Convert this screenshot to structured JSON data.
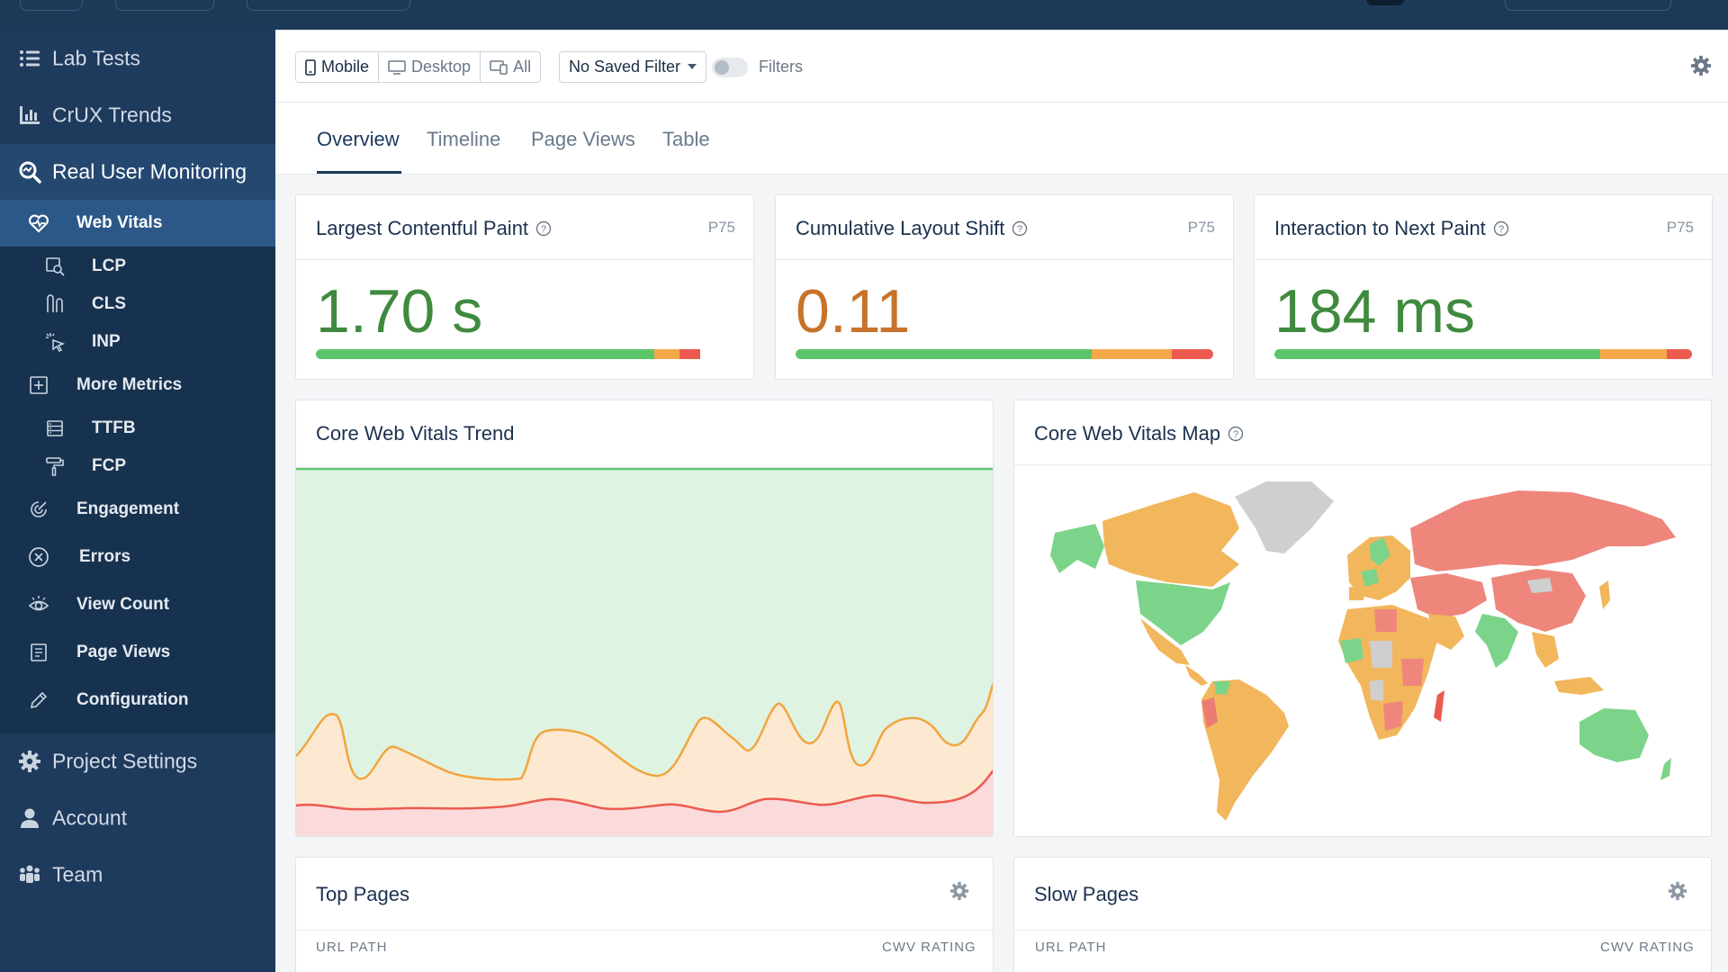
{
  "sidebar": {
    "main_top": [
      {
        "label": "Lab Tests",
        "icon": "list-icon"
      },
      {
        "label": "CrUX Trends",
        "icon": "bar-chart-icon"
      },
      {
        "label": "Real User Monitoring",
        "icon": "search-icon"
      }
    ],
    "sub": [
      {
        "label": "Web Vitals",
        "icon": "heart-pulse-icon"
      },
      {
        "label": "LCP",
        "icon": "image-search-icon"
      },
      {
        "label": "CLS",
        "icon": "shift-icon"
      },
      {
        "label": "INP",
        "icon": "pointer-click-icon"
      },
      {
        "label": "More Metrics",
        "icon": "plus-square-icon"
      },
      {
        "label": "TTFB",
        "icon": "server-icon"
      },
      {
        "label": "FCP",
        "icon": "paint-roller-icon"
      },
      {
        "label": "Engagement",
        "icon": "engagement-icon"
      },
      {
        "label": "Errors",
        "icon": "x-circle-icon"
      },
      {
        "label": "View Count",
        "icon": "eye-icon"
      },
      {
        "label": "Page Views",
        "icon": "document-icon"
      },
      {
        "label": "Configuration",
        "icon": "pencil-icon"
      }
    ],
    "main_bottom": [
      {
        "label": "Project Settings",
        "icon": "gear-icon"
      },
      {
        "label": "Account",
        "icon": "user-icon"
      },
      {
        "label": "Team",
        "icon": "team-icon"
      }
    ]
  },
  "filterbar": {
    "devices": [
      "Mobile",
      "Desktop",
      "All"
    ],
    "selected_device": "Mobile",
    "saved_filter": "No Saved Filter",
    "filters_label": "Filters",
    "filters_enabled": false
  },
  "tabs": [
    "Overview",
    "Timeline",
    "Page Views",
    "Table"
  ],
  "active_tab": "Overview",
  "metrics": [
    {
      "title": "Largest Contentful Paint",
      "percentile": "P75",
      "value": "1.70 s",
      "color": "#3f8a3f",
      "distribution": [
        0.81,
        0.06,
        0.05
      ]
    },
    {
      "title": "Cumulative Layout Shift",
      "percentile": "P75",
      "value": "0.11",
      "color": "#c7732a",
      "distribution": [
        0.71,
        0.19,
        0.1
      ]
    },
    {
      "title": "Interaction to Next Paint",
      "percentile": "P75",
      "value": "184 ms",
      "color": "#3f8a3f",
      "distribution": [
        0.78,
        0.16,
        0.06
      ]
    }
  ],
  "trend": {
    "title": "Core Web Vitals Trend"
  },
  "map": {
    "title": "Core Web Vitals Map"
  },
  "top_pages": {
    "title": "Top Pages",
    "col_url": "URL PATH",
    "col_rating": "CWV RATING"
  },
  "slow_pages": {
    "title": "Slow Pages",
    "col_url": "URL PATH",
    "col_rating": "CWV RATING"
  },
  "colors": {
    "good": "#5cc469",
    "needs_improvement": "#f5a84a",
    "poor": "#ec5a4f",
    "sidebar": "#1e3a5c",
    "accent": "#1c3a5c"
  }
}
